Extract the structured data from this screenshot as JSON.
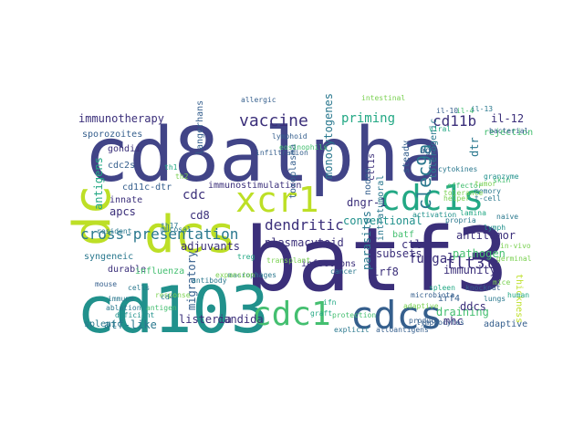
{
  "palette": [
    "#3b2f7a",
    "#414487",
    "#355f8d",
    "#2a788e",
    "#21918c",
    "#22a884",
    "#44bf70",
    "#7ad151",
    "#bddf26",
    "#fde725"
  ],
  "words": [
    {
      "text": "cd8alpha",
      "color": "#414487"
    },
    {
      "text": "batf3",
      "color": "#3b2f7a"
    },
    {
      "text": "cd103",
      "color": "#21918c"
    },
    {
      "text": "dcs",
      "color": "#bddf26"
    },
    {
      "text": "dc",
      "color": "#bddf26"
    },
    {
      "text": "cdc1s",
      "color": "#22a884"
    },
    {
      "text": "xcr1",
      "color": "#bddf26"
    },
    {
      "text": "cdcs",
      "color": "#355f8d"
    },
    {
      "text": "cdc1",
      "color": "#44bf70"
    },
    {
      "text": "vaccine",
      "color": "#3b2f7a"
    },
    {
      "text": "priming",
      "color": "#22a884"
    },
    {
      "text": "cd11b",
      "color": "#3b2f7a"
    },
    {
      "text": "clec9a",
      "color": "#2a788e"
    },
    {
      "text": "immunotherapy",
      "color": "#3b2f7a"
    },
    {
      "text": "dendritic",
      "color": "#3b2f7a"
    },
    {
      "text": "cross-presentation",
      "color": "#2a788e"
    },
    {
      "text": "flt3l",
      "color": "#3b2f7a"
    },
    {
      "text": "conventional",
      "color": "#21918c"
    },
    {
      "text": "cdc",
      "color": "#3b2f7a"
    },
    {
      "text": "cd8",
      "color": "#3b2f7a"
    },
    {
      "text": "apcs",
      "color": "#3b2f7a"
    },
    {
      "text": "adjuvants",
      "color": "#3b2f7a"
    },
    {
      "text": "dngr-1",
      "color": "#3b2f7a"
    },
    {
      "text": "monocytogenes",
      "color": "#2a788e"
    },
    {
      "text": "ctl1s",
      "color": "#3b2f7a"
    },
    {
      "text": "sporozoites",
      "color": "#355f8d"
    },
    {
      "text": "cdc2s",
      "color": "#355f8d"
    },
    {
      "text": "antigens",
      "color": "#22a884"
    },
    {
      "text": "gondii",
      "color": "#3b2f7a"
    },
    {
      "text": "cd11c-dtr",
      "color": "#355f8d"
    },
    {
      "text": "innate",
      "color": "#3b2f7a"
    },
    {
      "text": "immunostimulation",
      "color": "#3b2f7a"
    },
    {
      "text": "syngeneic",
      "color": "#2a788e"
    },
    {
      "text": "durable",
      "color": "#3b2f7a"
    },
    {
      "text": "influenza",
      "color": "#44bf70"
    },
    {
      "text": "plasmacytoid",
      "color": "#3b2f7a"
    },
    {
      "text": "toxoplasma",
      "color": "#355f8d"
    },
    {
      "text": "langerhans",
      "color": "#355f8d"
    },
    {
      "text": "nodes",
      "color": "#355f8d"
    },
    {
      "text": "steady",
      "color": "#355f8d"
    },
    {
      "text": "tolerogenic",
      "color": "#2a788e"
    },
    {
      "text": "il-12",
      "color": "#3b2f7a"
    },
    {
      "text": "rejection",
      "color": "#44bf70"
    },
    {
      "text": "antitumor",
      "color": "#3b2f7a"
    },
    {
      "text": "pathogen",
      "color": "#44bf70"
    },
    {
      "text": "fungal",
      "color": "#3b2f7a"
    },
    {
      "text": "ctl",
      "color": "#3b2f7a"
    },
    {
      "text": "batf",
      "color": "#44bf70"
    },
    {
      "text": "subsets",
      "color": "#3b2f7a"
    },
    {
      "text": "irf8",
      "color": "#3b2f7a"
    },
    {
      "text": "immunity",
      "color": "#3b2f7a"
    },
    {
      "text": "intratumoral",
      "color": "#2a788e"
    },
    {
      "text": "parasites",
      "color": "#2a788e"
    },
    {
      "text": "infections",
      "color": "#3b2f7a"
    },
    {
      "text": "draining",
      "color": "#44bf70"
    },
    {
      "text": "ddcs",
      "color": "#3b2f7a"
    },
    {
      "text": "mhc",
      "color": "#3b2f7a"
    },
    {
      "text": "adaptive",
      "color": "#355f8d"
    },
    {
      "text": "irf4",
      "color": "#355f8d"
    },
    {
      "text": "atf-like",
      "color": "#2a788e"
    },
    {
      "text": "listeria",
      "color": "#3b2f7a"
    },
    {
      "text": "candida",
      "color": "#3b2f7a"
    },
    {
      "text": "migratory",
      "color": "#355f8d"
    },
    {
      "text": "splenic",
      "color": "#2a788e"
    },
    {
      "text": "ags",
      "color": "#355f8d"
    },
    {
      "text": "thickness",
      "color": "#bddf26"
    },
    {
      "text": "dtr",
      "color": "#2a788e"
    },
    {
      "text": "antibody",
      "color": "#2a788e"
    },
    {
      "text": "macrophages",
      "color": "#2a788e"
    },
    {
      "text": "allergic",
      "color": "#355f8d"
    },
    {
      "text": "bacterial",
      "color": "#355f8d"
    },
    {
      "text": "cytokines",
      "color": "#2a788e"
    },
    {
      "text": "infiltration",
      "color": "#355f8d"
    },
    {
      "text": "eosinophils",
      "color": "#44bf70"
    },
    {
      "text": "lymphoid",
      "color": "#355f8d"
    },
    {
      "text": "resident",
      "color": "#2a788e"
    },
    {
      "text": "mucosal",
      "color": "#2a788e"
    },
    {
      "text": "effector",
      "color": "#44bf70"
    },
    {
      "text": "tumor",
      "color": "#7ad151"
    },
    {
      "text": "skin",
      "color": "#44bf70"
    },
    {
      "text": "t-cell",
      "color": "#2a788e"
    },
    {
      "text": "expansion",
      "color": "#7ad151"
    },
    {
      "text": "cancer",
      "color": "#2a788e"
    },
    {
      "text": "protection",
      "color": "#44bf70"
    },
    {
      "text": "alloantigens",
      "color": "#355f8d"
    },
    {
      "text": "adaptive",
      "color": "#7ad151"
    },
    {
      "text": "lymphocytes",
      "color": "#355f8d"
    },
    {
      "text": "lungs",
      "color": "#2a788e"
    },
    {
      "text": "mice",
      "color": "#7ad151"
    },
    {
      "text": "cells",
      "color": "#2a788e"
    },
    {
      "text": "response",
      "color": "#7ad151"
    },
    {
      "text": "immune",
      "color": "#2a788e"
    },
    {
      "text": "antigen",
      "color": "#44bf70"
    },
    {
      "text": "naive",
      "color": "#2a788e"
    },
    {
      "text": "lymph",
      "color": "#21918c"
    },
    {
      "text": "spleen",
      "color": "#22a884"
    },
    {
      "text": "memory",
      "color": "#2a788e"
    },
    {
      "text": "helper",
      "color": "#7ad151"
    },
    {
      "text": "propria",
      "color": "#2a788e"
    },
    {
      "text": "lamina",
      "color": "#22a884"
    },
    {
      "text": "activation",
      "color": "#21918c"
    },
    {
      "text": "produce",
      "color": "#355f8d"
    },
    {
      "text": "transplant",
      "color": "#7ad151"
    },
    {
      "text": "granzyme",
      "color": "#21918c"
    },
    {
      "text": "tolerance",
      "color": "#7ad151"
    },
    {
      "text": "viral",
      "color": "#22a884"
    },
    {
      "text": "microbiota",
      "color": "#355f8d"
    },
    {
      "text": "intestinal",
      "color": "#7ad151"
    },
    {
      "text": "explicit",
      "color": "#2a788e"
    },
    {
      "text": "graft",
      "color": "#22a884"
    },
    {
      "text": "ifn",
      "color": "#22a884"
    },
    {
      "text": "il-4",
      "color": "#44bf70"
    },
    {
      "text": "il-10",
      "color": "#355f8d"
    },
    {
      "text": "il-13",
      "color": "#2a788e"
    },
    {
      "text": "th1",
      "color": "#22a884"
    },
    {
      "text": "th2",
      "color": "#7ad151"
    },
    {
      "text": "th17",
      "color": "#2a788e"
    },
    {
      "text": "treg",
      "color": "#22a884"
    },
    {
      "text": "cd4",
      "color": "#2a788e"
    },
    {
      "text": "mouse",
      "color": "#355f8d"
    },
    {
      "text": "human",
      "color": "#22a884"
    },
    {
      "text": "in-vivo",
      "color": "#7ad151"
    },
    {
      "text": "ablation",
      "color": "#2a788e"
    },
    {
      "text": "deficient",
      "color": "#21918c"
    },
    {
      "text": "knockout",
      "color": "#355f8d"
    },
    {
      "text": "germinal",
      "color": "#7ad151"
    }
  ]
}
